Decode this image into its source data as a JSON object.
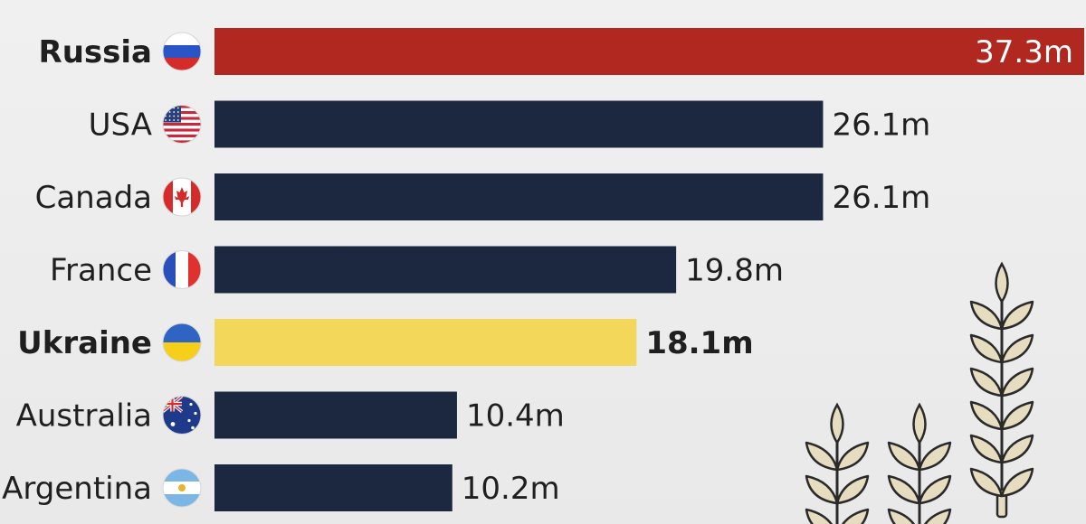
{
  "chart_data": {
    "type": "bar",
    "orientation": "horizontal",
    "categories": [
      "Russia",
      "USA",
      "Canada",
      "France",
      "Ukraine",
      "Australia",
      "Argentina"
    ],
    "values": [
      37.3,
      26.1,
      26.1,
      19.8,
      18.1,
      10.4,
      10.2
    ],
    "value_labels": [
      "37.3m",
      "26.1m",
      "26.1m",
      "19.8m",
      "18.1m",
      "10.4m",
      "10.2m"
    ],
    "highlight": [
      "Russia",
      "Ukraine"
    ],
    "colors": {
      "Russia": "#b0281f",
      "Ukraine": "#f3d75a",
      "default": "#1c2840",
      "label_text": "#1f1f1f",
      "wheat": "#e6dcbf",
      "wheat_stroke": "#2a2a2a"
    },
    "flag_icons": [
      "russia-flag-icon",
      "usa-flag-icon",
      "canada-flag-icon",
      "france-flag-icon",
      "ukraine-flag-icon",
      "australia-flag-icon",
      "argentina-flag-icon"
    ],
    "decoration_icon": "wheat-icon",
    "xlim": [
      0,
      37.3
    ],
    "grid": false,
    "legend": "none"
  }
}
